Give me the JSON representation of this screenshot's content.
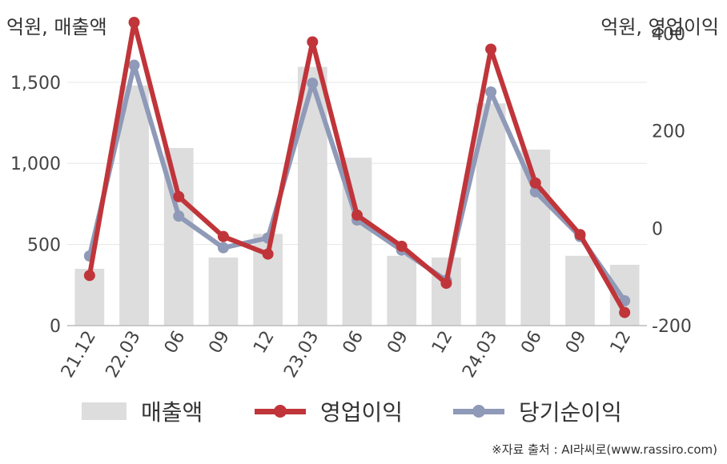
{
  "chart_data": {
    "type": "bar",
    "categories": [
      "21.12",
      "22.03",
      "06",
      "09",
      "12",
      "23.03",
      "06",
      "09",
      "12",
      "24.03",
      "06",
      "09",
      "12"
    ],
    "left_axis": {
      "unit_label": "억원, 매출액",
      "ylim": [
        0,
        1800
      ],
      "ticks": [
        0,
        500,
        1000,
        1500
      ],
      "tick_labels": [
        "0",
        "500",
        "1,000",
        "1,500"
      ]
    },
    "right_axis": {
      "unit_label": "억원, 영업이익",
      "ylim": [
        -200,
        400
      ],
      "ticks": [
        -200,
        0,
        200,
        400
      ],
      "tick_labels": [
        "-200",
        "0",
        "200",
        "400"
      ]
    },
    "series": [
      {
        "name": "매출액",
        "kind": "bar",
        "axis": "left",
        "color": "#dddddd",
        "values": [
          350,
          1480,
          1095,
          420,
          565,
          1595,
          1035,
          430,
          420,
          1370,
          1085,
          430,
          375
        ]
      },
      {
        "name": "영업이익",
        "kind": "line",
        "axis": "right",
        "color": "#c0353a",
        "values": [
          -97,
          423,
          65,
          -17,
          -53,
          383,
          27,
          -37,
          -113,
          368,
          93,
          -13,
          -173
        ]
      },
      {
        "name": "당기순이익",
        "kind": "line",
        "axis": "right",
        "color": "#8f9ab8",
        "values": [
          -57,
          335,
          25,
          -40,
          -20,
          298,
          17,
          -45,
          -107,
          280,
          75,
          -17,
          -149
        ]
      }
    ],
    "grid": true,
    "legend_position": "bottom"
  },
  "source": "※자료 출처 : AI라씨로(www.rassiro.com)"
}
